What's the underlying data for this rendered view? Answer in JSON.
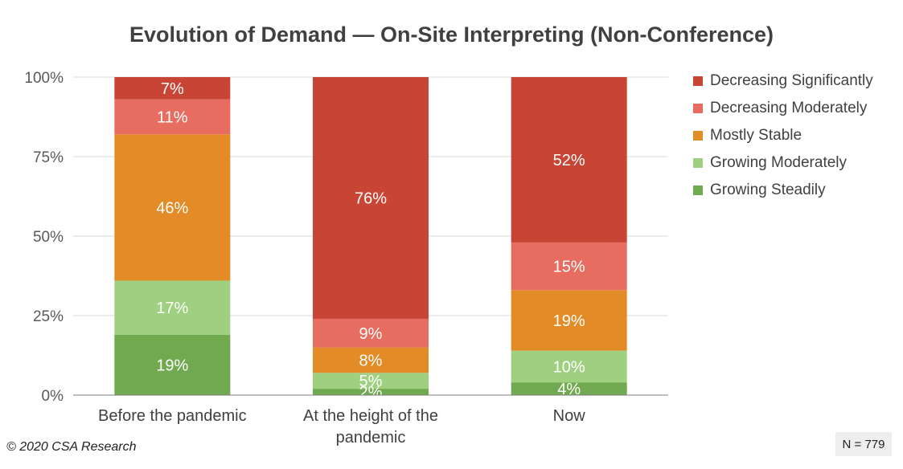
{
  "chart_data": {
    "type": "bar",
    "stacked": true,
    "title": "Evolution of Demand — On-Site Interpreting (Non-Conference)",
    "categories": [
      [
        "Before the pandemic"
      ],
      [
        "At the height of the",
        "pandemic"
      ],
      [
        "Now"
      ]
    ],
    "ylim": [
      0,
      100
    ],
    "yticks": [
      "0%",
      "25%",
      "50%",
      "75%",
      "100%"
    ],
    "grid": true,
    "legend_position": "right",
    "series": [
      {
        "name": "Growing Steadily",
        "color": "#70a94f",
        "values": [
          19,
          2,
          4
        ],
        "labels": [
          "19%",
          "2%",
          "4%"
        ]
      },
      {
        "name": "Growing Moderately",
        "color": "#9fd07f",
        "values": [
          17,
          5,
          10
        ],
        "labels": [
          "17%",
          "5%",
          "10%"
        ]
      },
      {
        "name": "Mostly Stable",
        "color": "#e38b26",
        "values": [
          46,
          8,
          19
        ],
        "labels": [
          "46%",
          "8%",
          "19%"
        ]
      },
      {
        "name": "Decreasing Moderately",
        "color": "#e76d60",
        "values": [
          11,
          9,
          15
        ],
        "labels": [
          "11%",
          "9%",
          "15%"
        ]
      },
      {
        "name": "Decreasing Significantly",
        "color": "#c84536",
        "values": [
          7,
          76,
          52
        ],
        "labels": [
          "7%",
          "76%",
          "52%"
        ]
      }
    ]
  },
  "footer": {
    "copyright": "© 2020 CSA Research",
    "sample_size": "N = 779"
  }
}
